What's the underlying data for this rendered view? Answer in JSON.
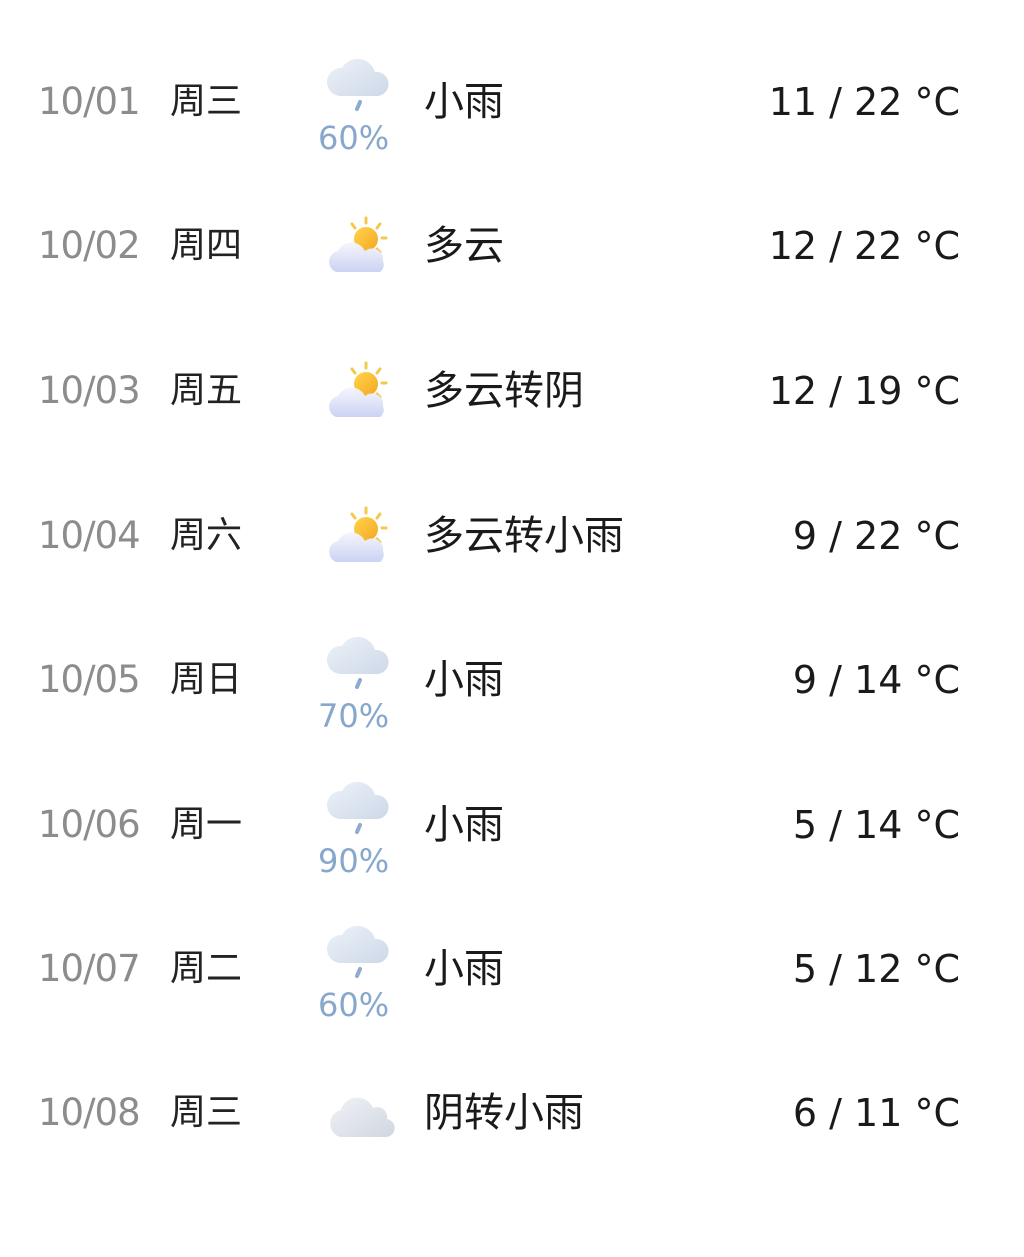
{
  "forecast": [
    {
      "date": "10/01",
      "weekday": "周三",
      "icon": "light-rain-icon",
      "precip": "60%",
      "condition": "小雨",
      "temp": "11 / 22 °C"
    },
    {
      "date": "10/02",
      "weekday": "周四",
      "icon": "partly-cloudy-icon",
      "precip": null,
      "condition": "多云",
      "temp": "12 / 22 °C"
    },
    {
      "date": "10/03",
      "weekday": "周五",
      "icon": "partly-cloudy-icon",
      "precip": null,
      "condition": "多云转阴",
      "temp": "12 / 19 °C"
    },
    {
      "date": "10/04",
      "weekday": "周六",
      "icon": "partly-cloudy-icon",
      "precip": null,
      "condition": "多云转小雨",
      "temp": "9 / 22 °C"
    },
    {
      "date": "10/05",
      "weekday": "周日",
      "icon": "light-rain-icon",
      "precip": "70%",
      "condition": "小雨",
      "temp": "9 / 14 °C"
    },
    {
      "date": "10/06",
      "weekday": "周一",
      "icon": "light-rain-icon",
      "precip": "90%",
      "condition": "小雨",
      "temp": "5 / 14 °C"
    },
    {
      "date": "10/07",
      "weekday": "周二",
      "icon": "light-rain-icon",
      "precip": "60%",
      "condition": "小雨",
      "temp": "5 / 12 °C"
    },
    {
      "date": "10/08",
      "weekday": "周三",
      "icon": "overcast-cloud-icon",
      "precip": null,
      "condition": "阴转小雨",
      "temp": "6 / 11 °C"
    }
  ],
  "colors": {
    "date": "#8c8c8c",
    "precip": "#87a7cc",
    "text": "#1a1a1a",
    "sun": "#f7b52a"
  }
}
